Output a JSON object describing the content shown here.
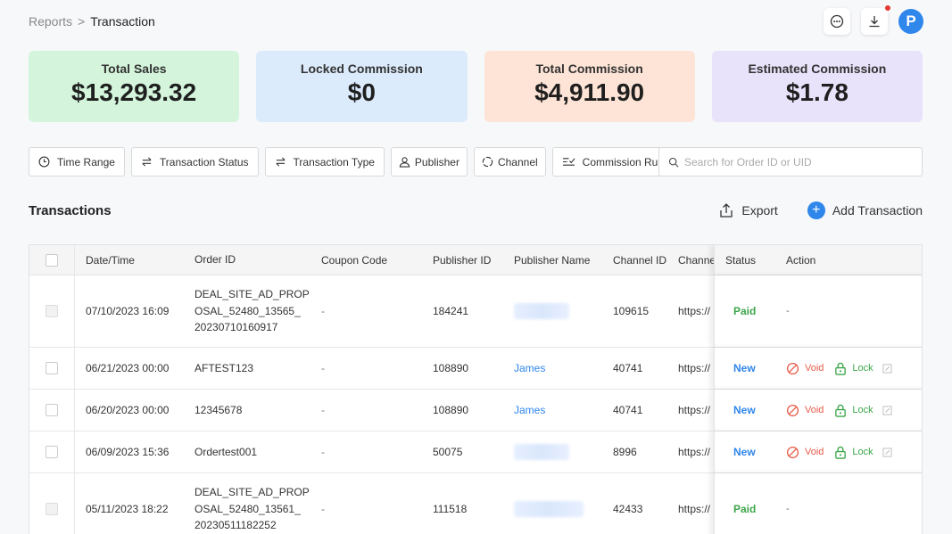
{
  "breadcrumb": {
    "parent": "Reports",
    "separator": ">",
    "current": "Transaction"
  },
  "header": {
    "avatar_letter": "P"
  },
  "cards": [
    {
      "label": "Total Sales",
      "value": "$13,293.32",
      "bg": "#d4f5dc"
    },
    {
      "label": "Locked Commission",
      "value": "$0",
      "bg": "#dcebfc"
    },
    {
      "label": "Total Commission",
      "value": "$4,911.90",
      "bg": "#fde4d6"
    },
    {
      "label": "Estimated Commission",
      "value": "$1.78",
      "bg": "#e9e2fb"
    }
  ],
  "filters": {
    "time_range": "Time Range",
    "transaction_status": "Transaction Status",
    "transaction_type": "Transaction Type",
    "publisher": "Publisher",
    "channel": "Channel",
    "commission_rule": "Commission Rule"
  },
  "search": {
    "placeholder": "Search for Order ID or UID"
  },
  "section": {
    "title": "Transactions",
    "export_label": "Export",
    "add_label": "Add Transaction"
  },
  "table": {
    "columns": {
      "date": "Date/Time",
      "order": "Order ID",
      "coupon": "Coupon Code",
      "pubid": "Publisher ID",
      "pubname": "Publisher Name",
      "chid": "Channel ID",
      "chname": "Channel",
      "status": "Status",
      "action": "Action"
    },
    "rows": [
      {
        "date": "07/10/2023 16:09",
        "order": [
          "DEAL_SITE_AD_PROP",
          "OSAL_52480_13565_",
          "20230710160917"
        ],
        "coupon": "-",
        "pubid": "184241",
        "pubname": "",
        "chid": "109615",
        "chname": "https://",
        "status": "Paid",
        "action": "-"
      },
      {
        "date": "06/21/2023 00:00",
        "order": [
          "AFTEST123"
        ],
        "coupon": "-",
        "pubid": "108890",
        "pubname": "James",
        "chid": "40741",
        "chname": "https://",
        "status": "New",
        "void": "Void",
        "lock": "Lock"
      },
      {
        "date": "06/20/2023 00:00",
        "order": [
          "12345678"
        ],
        "coupon": "-",
        "pubid": "108890",
        "pubname": "James",
        "chid": "40741",
        "chname": "https://",
        "status": "New",
        "void": "Void",
        "lock": "Lock"
      },
      {
        "date": "06/09/2023 15:36",
        "order": [
          "Ordertest001"
        ],
        "coupon": "-",
        "pubid": "50075",
        "pubname": "",
        "chid": "8996",
        "chname": "https://",
        "status": "New",
        "void": "Void",
        "lock": "Lock"
      },
      {
        "date": "05/11/2023 18:22",
        "order": [
          "DEAL_SITE_AD_PROP",
          "OSAL_52480_13561_",
          "20230511182252"
        ],
        "coupon": "-",
        "pubid": "111518",
        "pubname": "",
        "chid": "42433",
        "chname": "https://",
        "status": "Paid",
        "action": "-"
      }
    ]
  }
}
